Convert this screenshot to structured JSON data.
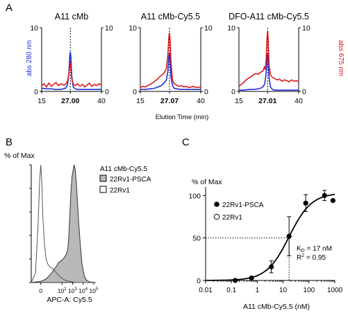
{
  "panels": {
    "A": {
      "letter": "A"
    },
    "B": {
      "letter": "B"
    },
    "C": {
      "letter": "C"
    }
  },
  "colors": {
    "blue": "#1f2fd6",
    "red": "#e0161a",
    "fill": "#b8b8b8",
    "black": "#000000"
  },
  "chart_data": [
    {
      "panel": "A",
      "type": "line",
      "shared_xlabel": "Elution Time (min)",
      "left_ylabel": "abs 280 nm",
      "right_ylabel": "abs 675 nm",
      "xlim": [
        15,
        40
      ],
      "ylim": [
        0,
        10
      ],
      "x_ticks": [
        "15",
        "40"
      ],
      "y_ticks": [
        "0",
        "10"
      ],
      "subplots": [
        {
          "title": "A11 cMb",
          "peak_label": "27.00",
          "peak_x": 27.0,
          "series": [
            {
              "color": "blue",
              "x": [
                15,
                17,
                19,
                21,
                23,
                24,
                25,
                25.8,
                26.4,
                26.8,
                27.0,
                27.2,
                27.6,
                28.2,
                29,
                30,
                32,
                34,
                36,
                38,
                40
              ],
              "y": [
                0.5,
                0.4,
                0.4,
                0.3,
                0.3,
                0.4,
                0.5,
                1.0,
                3.0,
                5.8,
                6.2,
                5.5,
                2.4,
                0.7,
                0.4,
                0.3,
                0.3,
                0.3,
                0.3,
                0.3,
                0.3
              ]
            },
            {
              "color": "red",
              "x": [
                15,
                16,
                17,
                18,
                19,
                20,
                21,
                22,
                23,
                24,
                25,
                25.8,
                26.4,
                26.8,
                27.0,
                27.2,
                27.6,
                28.2,
                29,
                30,
                31,
                32,
                33,
                34,
                35,
                36,
                37,
                38,
                39,
                40
              ],
              "y": [
                0.9,
                1.2,
                0.7,
                1.3,
                0.8,
                1.1,
                1.4,
                0.9,
                1.2,
                1.0,
                1.1,
                1.6,
                2.8,
                4.2,
                4.6,
                4.0,
                2.0,
                1.2,
                0.9,
                1.2,
                0.8,
                1.1,
                0.7,
                1.0,
                1.3,
                0.8,
                1.1,
                0.9,
                1.2,
                1.0
              ]
            }
          ]
        },
        {
          "title": "A11 cMb-Cy5.5",
          "peak_label": "27.07",
          "peak_x": 27.07,
          "series": [
            {
              "color": "blue",
              "x": [
                15,
                17,
                19,
                21,
                23,
                24,
                25,
                25.8,
                26.4,
                26.8,
                27.07,
                27.3,
                27.7,
                28.3,
                29,
                30,
                32,
                34,
                36,
                38,
                40
              ],
              "y": [
                0.3,
                0.3,
                0.4,
                0.5,
                0.8,
                1.0,
                1.4,
                1.8,
                3.2,
                5.5,
                6.1,
                5.2,
                2.3,
                0.9,
                0.5,
                0.4,
                0.3,
                0.3,
                0.3,
                0.3,
                0.3
              ]
            },
            {
              "color": "red",
              "x": [
                15,
                16,
                17,
                18,
                19,
                20,
                21,
                22,
                23,
                24,
                25,
                25.8,
                26.4,
                26.8,
                27.07,
                27.3,
                27.7,
                28.3,
                29,
                30,
                31,
                32,
                33,
                34,
                35,
                36,
                37,
                38,
                39,
                40
              ],
              "y": [
                0.6,
                0.8,
                0.7,
                0.9,
                1.1,
                1.3,
                1.6,
                1.9,
                2.3,
                2.6,
                3.0,
                3.6,
                5.8,
                8.6,
                9.2,
                8.2,
                4.5,
                1.8,
                1.2,
                1.0,
                0.8,
                0.9,
                0.7,
                0.8,
                0.6,
                0.7,
                0.8,
                0.6,
                0.7,
                0.6
              ]
            }
          ]
        },
        {
          "title": "DFO-A11 cMb-Cy5.5",
          "peak_label": "27.01",
          "peak_x": 27.01,
          "series": [
            {
              "color": "blue",
              "x": [
                15,
                17,
                19,
                21,
                23,
                24,
                25,
                25.8,
                26.4,
                26.8,
                27.01,
                27.2,
                27.6,
                28.2,
                29,
                30,
                32,
                34,
                36,
                38,
                40
              ],
              "y": [
                0.2,
                0.2,
                0.3,
                0.3,
                0.4,
                0.5,
                0.7,
                1.2,
                3.0,
                5.4,
                6.0,
                5.1,
                2.2,
                0.7,
                0.3,
                0.2,
                0.2,
                0.2,
                0.2,
                0.2,
                0.2
              ]
            },
            {
              "color": "red",
              "x": [
                15,
                16,
                17,
                18,
                19,
                20,
                21,
                22,
                23,
                24,
                25,
                25.6,
                26.0,
                26.4,
                26.8,
                27.01,
                27.2,
                27.6,
                28.2,
                29,
                30,
                31,
                32,
                33,
                34,
                35,
                36,
                37,
                38,
                39,
                40
              ],
              "y": [
                0.8,
                1.1,
                1.4,
                1.8,
                2.1,
                2.3,
                2.6,
                2.8,
                2.7,
                3.0,
                3.2,
                3.8,
                3.4,
                5.0,
                8.8,
                9.5,
                8.4,
                4.2,
                2.6,
                2.2,
                2.0,
                1.8,
                1.9,
                1.6,
                1.8,
                1.7,
                1.5,
                1.8,
                1.6,
                1.7,
                1.5
              ]
            }
          ]
        }
      ]
    },
    {
      "panel": "B",
      "type": "area",
      "ylabel": "% of Max",
      "xlabel": "APC-A: Cy5.5",
      "legend_title": "A11 cMb-Cy5.5",
      "legend": [
        {
          "name": "22Rv1-PSCA",
          "style": "filled"
        },
        {
          "name": "22Rv1",
          "style": "open"
        }
      ],
      "x_ticks": [
        {
          "v": 0,
          "label": "0"
        },
        {
          "v": 2,
          "label": "10",
          "exp": "2"
        },
        {
          "v": 3,
          "label": "10",
          "exp": "3"
        },
        {
          "v": 4,
          "label": "10",
          "exp": "4"
        },
        {
          "v": 5,
          "label": "10",
          "exp": "5"
        }
      ],
      "xlim": [
        -0.9,
        5.2
      ],
      "ylim": [
        0,
        100
      ],
      "series": [
        {
          "name": "22Rv1-PSCA",
          "filled": true,
          "x": [
            -0.9,
            0.0,
            0.5,
            1.0,
            1.4,
            1.7,
            2.0,
            2.2,
            2.4,
            2.55,
            2.65,
            2.75,
            2.85,
            2.95,
            3.05,
            3.15,
            3.25,
            3.35,
            3.45,
            3.6,
            3.75,
            3.9,
            4.1,
            4.3,
            4.6,
            5.2
          ],
          "y": [
            0,
            1,
            3,
            8,
            13,
            17,
            19,
            21,
            24,
            28,
            40,
            58,
            78,
            90,
            95,
            100,
            96,
            86,
            70,
            48,
            30,
            15,
            6,
            2,
            0.5,
            0
          ]
        },
        {
          "name": "22Rv1",
          "filled": false,
          "x": [
            -0.9,
            -0.5,
            -0.25,
            -0.1,
            0.0,
            0.1,
            0.2,
            0.35,
            0.5,
            0.7,
            0.9,
            1.1,
            1.3,
            1.5,
            1.8,
            2.1,
            2.4,
            2.7,
            3.0,
            3.3,
            5.2
          ],
          "y": [
            0,
            8,
            50,
            88,
            100,
            85,
            55,
            32,
            20,
            15,
            13,
            12,
            10,
            8,
            5,
            3,
            1.5,
            1,
            0.5,
            0,
            0
          ]
        }
      ]
    },
    {
      "panel": "C",
      "type": "scatter",
      "ylabel": "% of Max",
      "xlabel": "A11 cMb-Cy5.5 (nM)",
      "x_ticks": [
        "0.01",
        "0.1",
        "1",
        "10",
        "100",
        "1000"
      ],
      "y_ticks": [
        "0",
        "50",
        "100"
      ],
      "xlim": [
        0.01,
        1000
      ],
      "x_scale": "log",
      "ylim": [
        0,
        110
      ],
      "kd_text": "K",
      "kd_sub": "D",
      "kd_value": " = 17 nM",
      "r2_text": "R",
      "r2_sup": "2",
      "r2_value": " = 0.95",
      "kd": 17,
      "legend": [
        {
          "name": "22Rv1-PSCA",
          "style": "filled"
        },
        {
          "name": "22Rv1",
          "style": "open"
        }
      ],
      "series": [
        {
          "name": "22Rv1-PSCA",
          "x": [
            0.14,
            0.6,
            3.5,
            17,
            75,
            400,
            850
          ],
          "y": [
            0,
            3,
            16,
            52,
            91,
            100,
            94
          ],
          "err": [
            0,
            0,
            7,
            23,
            10,
            6,
            0
          ]
        }
      ],
      "fit": {
        "type": "sigmoid",
        "top": 103,
        "bottom": 0,
        "ec50": 17,
        "hill": 1.0
      }
    }
  ]
}
